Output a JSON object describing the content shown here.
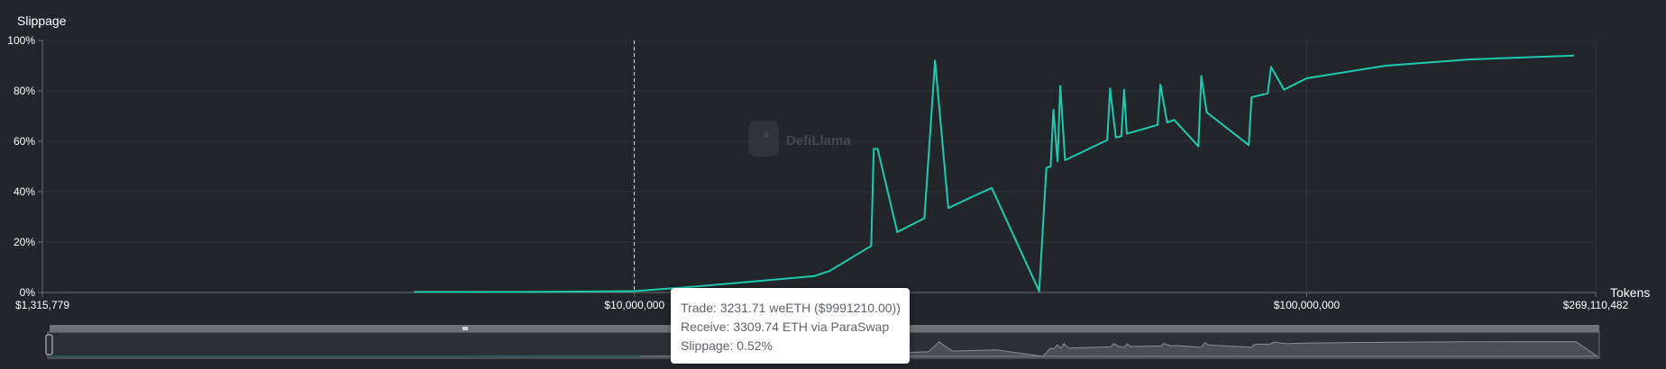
{
  "chart_data": {
    "type": "line",
    "ylabel": "Slippage",
    "xlabel": "Tokens",
    "x_scale": "log",
    "xlim": [
      1315779,
      269110482
    ],
    "ylim": [
      0,
      100
    ],
    "x_ticks": [
      "$1,315,779",
      "$10,000,000",
      "$100,000,000",
      "$269,110,482"
    ],
    "x_tick_values": [
      1315779,
      10000000,
      100000000,
      269110482
    ],
    "y_ticks": [
      "0%",
      "20%",
      "40%",
      "60%",
      "80%",
      "100%"
    ],
    "y_tick_values": [
      0,
      20,
      40,
      60,
      80,
      100
    ],
    "grid": true,
    "line_color": "#1ecbb1",
    "series": [
      {
        "points": [
          [
            4700000,
            0.2
          ],
          [
            7200000,
            0.3
          ],
          [
            9991210,
            0.52
          ],
          [
            12500000,
            2.5
          ],
          [
            15200000,
            4.5
          ],
          [
            18500000,
            6.5
          ],
          [
            19500000,
            8.5
          ],
          [
            22500000,
            18.5
          ],
          [
            22700000,
            57
          ],
          [
            23000000,
            57
          ],
          [
            24600000,
            24
          ],
          [
            27000000,
            29.5
          ],
          [
            28000000,
            92
          ],
          [
            29300000,
            33.5
          ],
          [
            31800000,
            38
          ],
          [
            34000000,
            41.5
          ],
          [
            40000000,
            0.5
          ],
          [
            41000000,
            49.5
          ],
          [
            41600000,
            50
          ],
          [
            42000000,
            72.5
          ],
          [
            42600000,
            52
          ],
          [
            43000000,
            82
          ],
          [
            43700000,
            52.5
          ],
          [
            50500000,
            60.5
          ],
          [
            51000000,
            81
          ],
          [
            52000000,
            61.5
          ],
          [
            53000000,
            62
          ],
          [
            53500000,
            80.5
          ],
          [
            54000000,
            63
          ],
          [
            60000000,
            66.5
          ],
          [
            60600000,
            82.5
          ],
          [
            62000000,
            67.5
          ],
          [
            63500000,
            68.5
          ],
          [
            69000000,
            58
          ],
          [
            69700000,
            86
          ],
          [
            71000000,
            71.5
          ],
          [
            82000000,
            58.5
          ],
          [
            82800000,
            77.5
          ],
          [
            87500000,
            79
          ],
          [
            88500000,
            89.5
          ],
          [
            92500000,
            80.5
          ],
          [
            100000000,
            85
          ],
          [
            131000000,
            90
          ],
          [
            175000000,
            92.5
          ],
          [
            250000000,
            94
          ]
        ]
      }
    ],
    "watermark": "DefiLlama",
    "tooltip": {
      "trade": "Trade: 3231.71 weETH ($9991210.00))",
      "receive": "Receive: 3309.74 ETH via ParaSwap",
      "slippage": "Slippage: 0.52%"
    },
    "crosshair_x": 9991210
  }
}
